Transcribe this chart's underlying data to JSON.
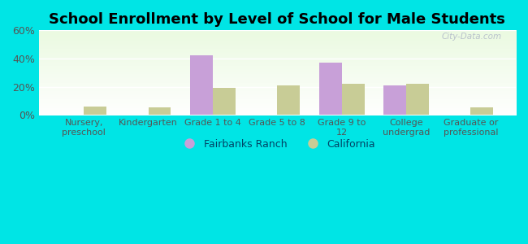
{
  "title": "School Enrollment by Level of School for Male Students",
  "categories": [
    "Nursery,\npreschool",
    "Kindergarten",
    "Grade 1 to 4",
    "Grade 5 to 8",
    "Grade 9 to\n12",
    "College\nundergrad",
    "Graduate or\nprofessional"
  ],
  "fairbanks_values": [
    0,
    0,
    42,
    0,
    37,
    21,
    0
  ],
  "california_values": [
    6,
    5.5,
    19,
    21,
    22,
    22,
    5.5
  ],
  "fairbanks_color": "#c8a0d8",
  "california_color": "#c8cc96",
  "ylim": [
    0,
    60
  ],
  "yticks": [
    0,
    20,
    40,
    60
  ],
  "ytick_labels": [
    "0%",
    "20%",
    "40%",
    "60%"
  ],
  "background_color": "#00e5e5",
  "title_fontsize": 13,
  "legend_labels": [
    "Fairbanks Ranch",
    "California"
  ],
  "bar_width": 0.35,
  "watermark": "City-Data.com"
}
